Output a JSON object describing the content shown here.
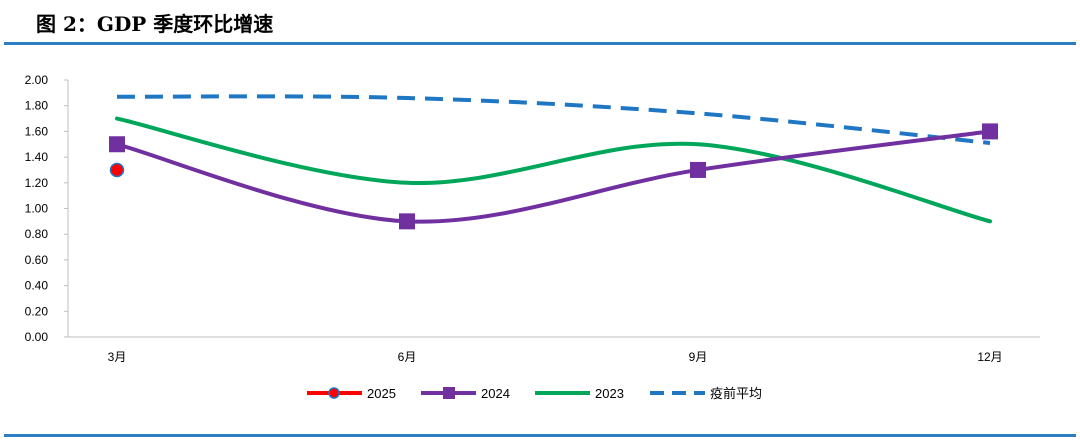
{
  "figure": {
    "title": "图 2：GDP 季度环比增速"
  },
  "chart_data": {
    "type": "line",
    "title": "GDP 季度环比增速",
    "categories": [
      "3月",
      "6月",
      "9月",
      "12月"
    ],
    "ylim": [
      0,
      2
    ],
    "ytick_labels": [
      "0.00",
      "0.20",
      "0.40",
      "0.60",
      "0.80",
      "1.00",
      "1.20",
      "1.40",
      "1.60",
      "1.80",
      "2.00"
    ],
    "legend_position": "bottom",
    "series": [
      {
        "name": "2025",
        "values": [
          1.3,
          null,
          null,
          null
        ],
        "color": "#ff0000",
        "marker": "circle",
        "smooth": true
      },
      {
        "name": "2024",
        "values": [
          1.5,
          0.9,
          1.3,
          1.6
        ],
        "color": "#7030a0",
        "marker": "square",
        "smooth": true
      },
      {
        "name": "2023",
        "values": [
          1.7,
          1.2,
          1.5,
          0.9
        ],
        "color": "#00a65a",
        "marker": "none",
        "smooth": true
      },
      {
        "name": "疫前平均",
        "values": [
          1.87,
          1.86,
          1.74,
          1.51
        ],
        "color": "#1f77c4",
        "marker": "none",
        "dashed": true,
        "smooth": true
      }
    ]
  }
}
